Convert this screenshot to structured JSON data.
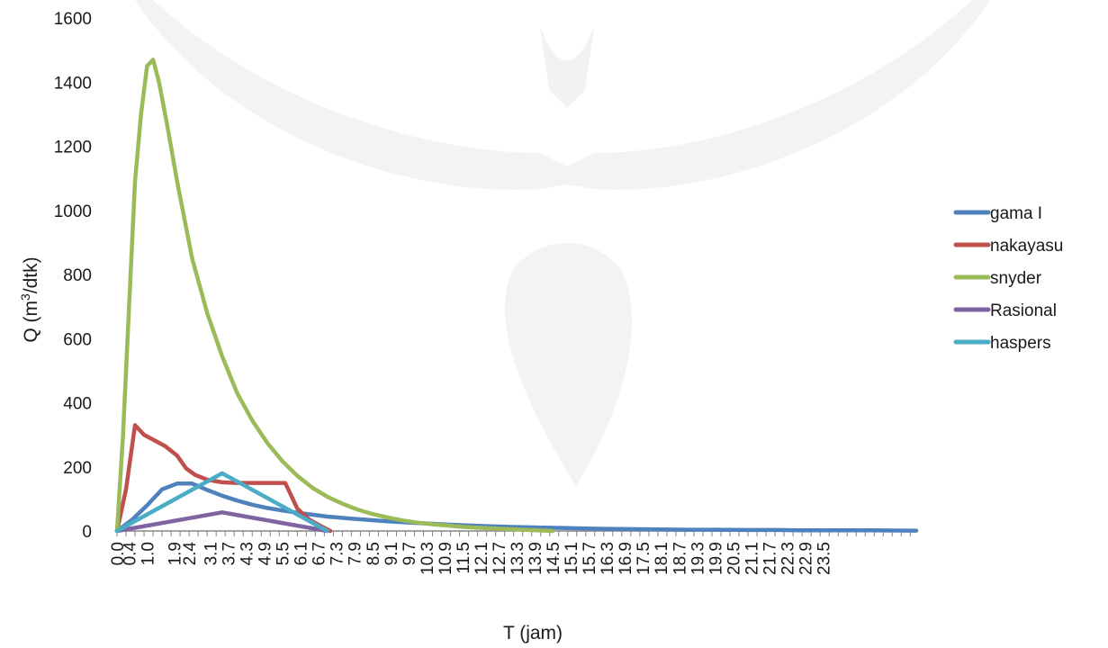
{
  "chart_data": {
    "type": "line",
    "xlabel": "T (jam)",
    "ylabel_main": "Q (m",
    "ylabel_sup": "3",
    "ylabel_end": "/dtk)",
    "ylim": [
      0,
      1600
    ],
    "yticks": [
      0,
      200,
      400,
      600,
      800,
      1000,
      1200,
      1400,
      1600
    ],
    "xlim": [
      0,
      26.6
    ],
    "xtick_labels": [
      "0.0",
      "0.4",
      "1.0",
      "1.9",
      "2.4",
      "3.1",
      "3.7",
      "4.3",
      "4.9",
      "5.5",
      "6.1",
      "6.7",
      "7.3",
      "7.9",
      "8.5",
      "9.1",
      "9.7",
      "10.3",
      "10.9",
      "11.5",
      "12.1",
      "12.7",
      "13.3",
      "13.9",
      "14.5",
      "15.1",
      "15.7",
      "16.3",
      "16.9",
      "17.5",
      "18.1",
      "18.7",
      "19.3",
      "19.9",
      "20.5",
      "21.1",
      "21.7",
      "22.3",
      "22.9",
      "23.5"
    ],
    "xtick_values": [
      0.0,
      0.4,
      1.0,
      1.9,
      2.4,
      3.1,
      3.7,
      4.3,
      4.9,
      5.5,
      6.1,
      6.7,
      7.3,
      7.9,
      8.5,
      9.1,
      9.7,
      10.3,
      10.9,
      11.5,
      12.1,
      12.7,
      13.3,
      13.9,
      14.5,
      15.1,
      15.7,
      16.3,
      16.9,
      17.5,
      18.1,
      18.7,
      19.3,
      19.9,
      20.5,
      21.1,
      21.7,
      22.3,
      22.9,
      23.5
    ],
    "legend_position": "right",
    "series": [
      {
        "name": "gama I",
        "color": "#4f81bd",
        "x": [
          0.0,
          0.5,
          1.0,
          1.5,
          2.0,
          2.5,
          3.0,
          3.5,
          4.0,
          4.5,
          5.0,
          5.5,
          6.0,
          7.0,
          8.0,
          9.0,
          10.0,
          11.0,
          12.0,
          13.0,
          14.0,
          15.0,
          16.0,
          17.0,
          18.0,
          19.0,
          20.0,
          21.0,
          22.0,
          23.0,
          24.0,
          25.0,
          26.6
        ],
        "y": [
          0,
          35,
          80,
          130,
          148,
          148,
          128,
          110,
          95,
          82,
          72,
          64,
          57,
          45,
          37,
          30,
          25,
          20,
          16,
          13,
          11,
          9,
          7,
          6,
          5,
          4,
          4,
          3,
          3,
          2,
          2,
          2,
          1
        ]
      },
      {
        "name": "nakayasu",
        "color": "#c0504d",
        "x": [
          0.0,
          0.3,
          0.6,
          0.9,
          1.2,
          1.6,
          2.0,
          2.3,
          2.6,
          3.0,
          3.5,
          4.0,
          4.5,
          5.0,
          5.6,
          6.0,
          6.4,
          6.8,
          7.1
        ],
        "y": [
          0,
          130,
          330,
          300,
          285,
          265,
          235,
          195,
          175,
          160,
          152,
          150,
          150,
          150,
          150,
          70,
          35,
          15,
          0
        ]
      },
      {
        "name": "snyder",
        "color": "#9bbb59",
        "x": [
          0.0,
          0.2,
          0.4,
          0.6,
          0.8,
          1.0,
          1.2,
          1.4,
          1.7,
          2.0,
          2.5,
          3.0,
          3.5,
          4.0,
          4.5,
          5.0,
          5.5,
          6.0,
          6.5,
          7.0,
          7.5,
          8.0,
          8.5,
          9.0,
          9.5,
          10.0,
          10.5,
          11.0,
          11.5,
          12.0,
          12.5,
          13.0,
          13.5,
          14.0,
          14.5
        ],
        "y": [
          0,
          300,
          700,
          1090,
          1300,
          1450,
          1470,
          1400,
          1250,
          1090,
          850,
          680,
          545,
          430,
          345,
          275,
          218,
          172,
          135,
          107,
          85,
          67,
          53,
          42,
          33,
          26,
          21,
          17,
          13,
          10,
          8,
          6,
          4,
          2,
          0
        ]
      },
      {
        "name": "Rasional",
        "color": "#8064a2",
        "x": [
          0.0,
          3.5,
          7.0
        ],
        "y": [
          0,
          58,
          0
        ]
      },
      {
        "name": "haspers",
        "color": "#4bacc6",
        "x": [
          0.0,
          3.5,
          7.0
        ],
        "y": [
          0,
          180,
          0
        ]
      }
    ]
  }
}
